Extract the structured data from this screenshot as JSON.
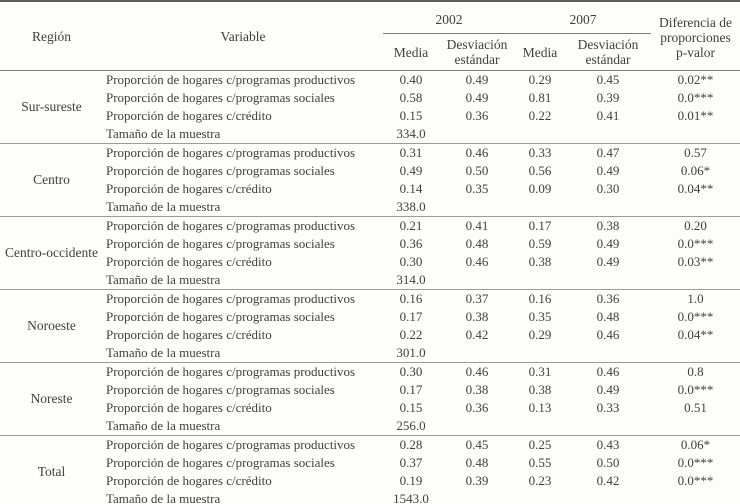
{
  "header": {
    "region_label": "Región",
    "variable_label": "Variable",
    "year_2002": "2002",
    "year_2007": "2007",
    "media_label": "Media",
    "desviacion_label": "Desviación estándar",
    "diferencia_label": "Diferencia de proporciones p-valor"
  },
  "regions": [
    {
      "name": "Sur-sureste",
      "rows": [
        [
          "Proporción de hogares c/programas productivos",
          "0.40",
          "0.49",
          "0.29",
          "0.45",
          "0.02**"
        ],
        [
          "Proporción de hogares c/programas sociales",
          "0.58",
          "0.49",
          "0.81",
          "0.39",
          "0.0***"
        ],
        [
          "Proporción de hogares c/crédito",
          "0.15",
          "0.36",
          "0.22",
          "0.41",
          "0.01**"
        ],
        [
          "Tamaño de la muestra",
          "334.0",
          "",
          "",
          "",
          ""
        ]
      ]
    },
    {
      "name": "Centro",
      "rows": [
        [
          "Proporción de hogares c/programas productivos",
          "0.31",
          "0.46",
          "0.33",
          "0.47",
          "0.57"
        ],
        [
          "Proporción de hogares c/programas sociales",
          "0.49",
          "0.50",
          "0.56",
          "0.49",
          "0.06*"
        ],
        [
          "Proporción de hogares c/crédito",
          "0.14",
          "0.35",
          "0.09",
          "0.30",
          "0.04**"
        ],
        [
          "Tamaño de la muestra",
          "338.0",
          "",
          "",
          "",
          ""
        ]
      ]
    },
    {
      "name": "Centro-occidente",
      "rows": [
        [
          "Proporción de hogares c/programas productivos",
          "0.21",
          "0.41",
          "0.17",
          "0.38",
          "0.20"
        ],
        [
          "Proporción de hogares c/programas sociales",
          "0.36",
          "0.48",
          "0.59",
          "0.49",
          "0.0***"
        ],
        [
          "Proporción de hogares c/crédito",
          "0.30",
          "0.46",
          "0.38",
          "0.49",
          "0.03**"
        ],
        [
          "Tamaño de la muestra",
          "314.0",
          "",
          "",
          "",
          ""
        ]
      ]
    },
    {
      "name": "Noroeste",
      "rows": [
        [
          "Proporción de hogares c/programas productivos",
          "0.16",
          "0.37",
          "0.16",
          "0.36",
          "1.0"
        ],
        [
          "Proporción de hogares c/programas sociales",
          "0.17",
          "0.38",
          "0.35",
          "0.48",
          "0.0***"
        ],
        [
          "Proporción de hogares c/crédito",
          "0.22",
          "0.42",
          "0.29",
          "0.46",
          "0.04**"
        ],
        [
          "Tamaño de la muestra",
          "301.0",
          "",
          "",
          "",
          ""
        ]
      ]
    },
    {
      "name": "Noreste",
      "rows": [
        [
          "Proporción de hogares c/programas productivos",
          "0.30",
          "0.46",
          "0.31",
          "0.46",
          "0.8"
        ],
        [
          "Proporción de hogares c/programas sociales",
          "0.17",
          "0.38",
          "0.38",
          "0.49",
          "0.0***"
        ],
        [
          "Proporción de hogares c/crédito",
          "0.15",
          "0.36",
          "0.13",
          "0.33",
          "0.51"
        ],
        [
          "Tamaño de la muestra",
          "256.0",
          "",
          "",
          "",
          ""
        ]
      ]
    },
    {
      "name": "Total",
      "rows": [
        [
          "Proporción de hogares c/programas productivos",
          "0.28",
          "0.45",
          "0.25",
          "0.43",
          "0.06*"
        ],
        [
          "Proporción de hogares c/programas sociales",
          "0.37",
          "0.48",
          "0.55",
          "0.50",
          "0.0***"
        ],
        [
          "Proporción de hogares c/crédito",
          "0.19",
          "0.39",
          "0.23",
          "0.42",
          "0.0***"
        ],
        [
          "Tamaño de la muestra",
          "1543.0",
          "",
          "",
          "",
          ""
        ]
      ]
    }
  ]
}
